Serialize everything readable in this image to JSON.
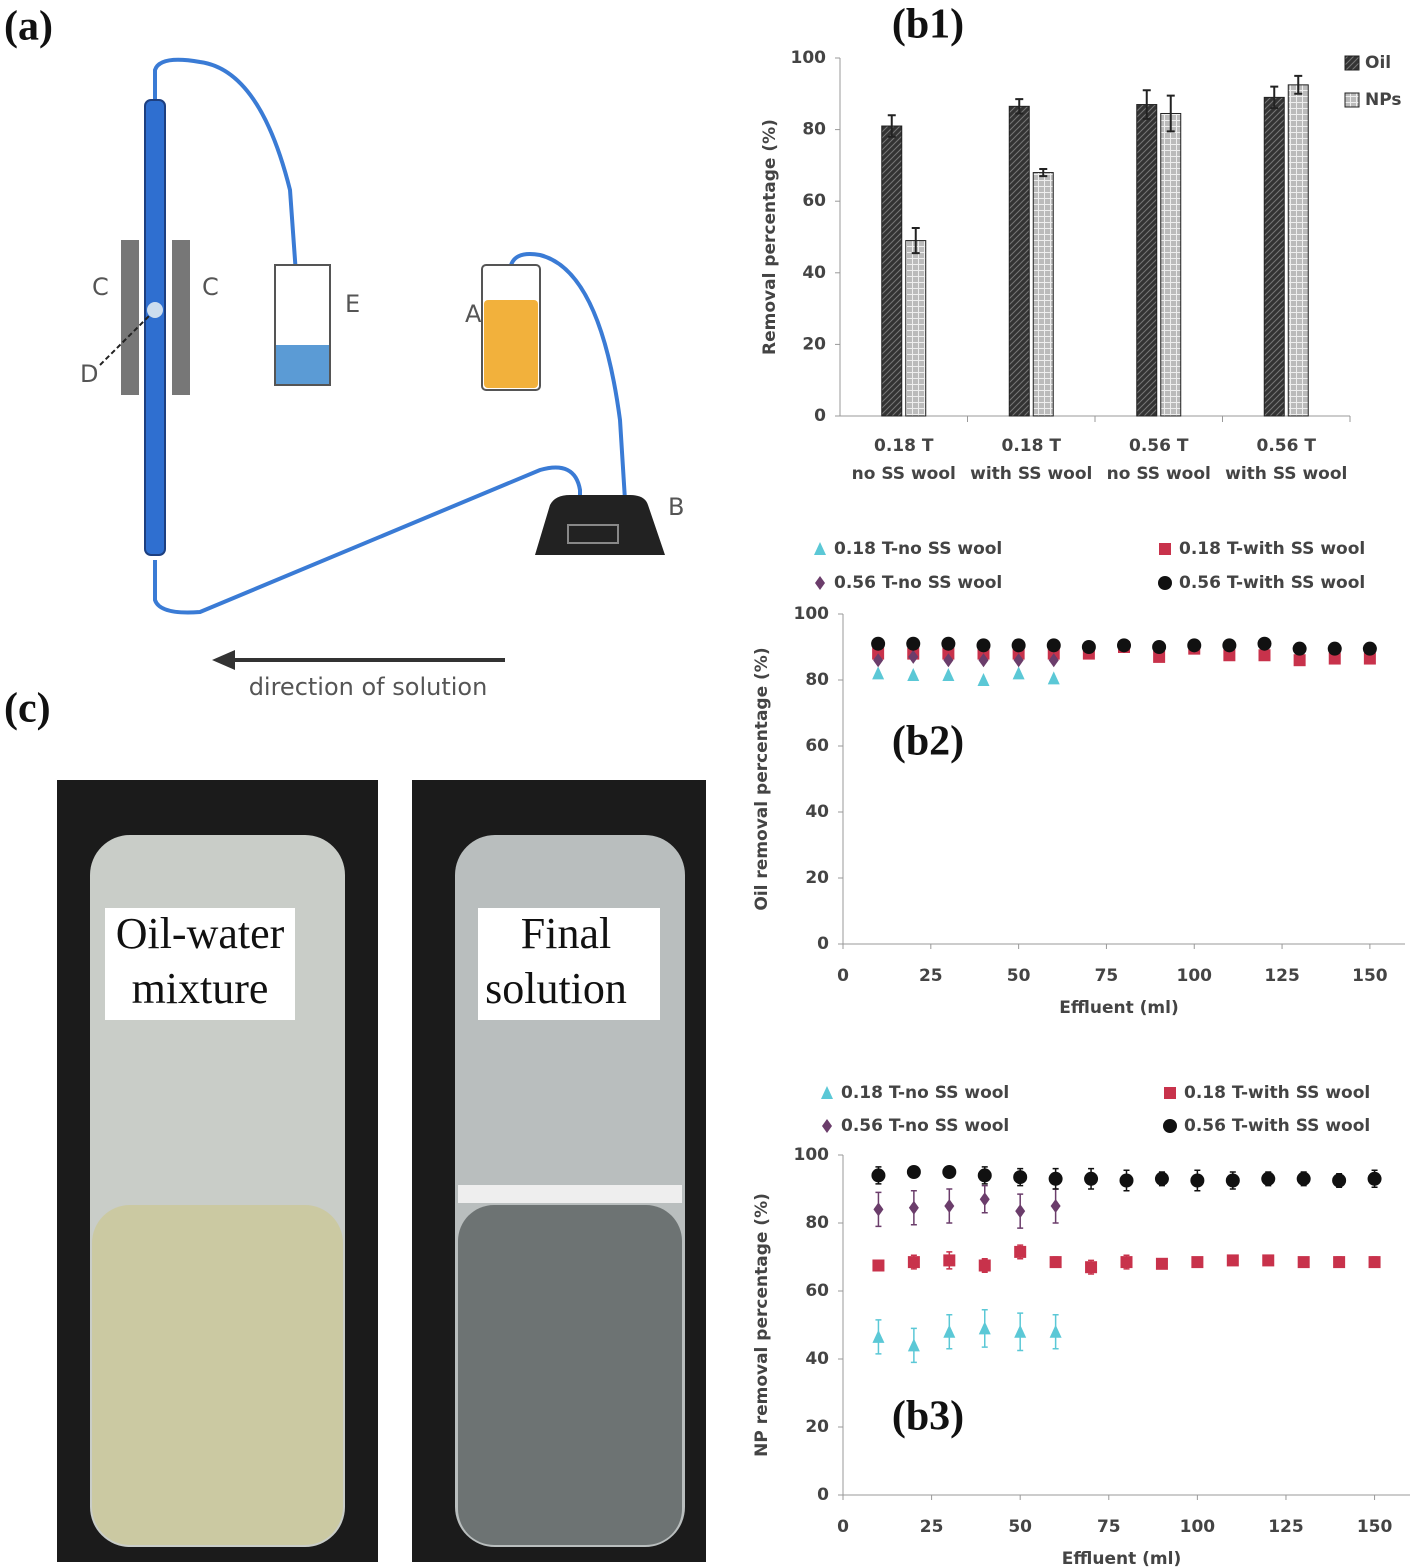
{
  "panel_a": {
    "label": "(a)",
    "parts": [
      "A",
      "B",
      "C",
      "C",
      "D",
      "E"
    ],
    "flow_label": "direction of solution"
  },
  "panel_c": {
    "label": "(c)",
    "photos": [
      {
        "lines": [
          "Oil-water",
          "mixture"
        ]
      },
      {
        "lines": [
          "Final",
          "solution"
        ]
      }
    ]
  },
  "chart_data": [
    {
      "type": "bar",
      "annotation": "(b1)",
      "y_label": "Removal percentage (%)",
      "categories": [
        [
          "0.18 T",
          "no SS wool"
        ],
        [
          "0.18 T",
          "with SS wool"
        ],
        [
          "0.56 T",
          "no SS wool"
        ],
        [
          "0.56 T",
          "with SS wool"
        ]
      ],
      "series": [
        {
          "name": "Oil",
          "color": "#333333",
          "pattern": "hatch",
          "values": [
            81,
            86.5,
            87,
            89
          ],
          "errors": [
            3,
            2,
            4,
            3
          ]
        },
        {
          "name": "NPs",
          "color": "#bbbbbb",
          "pattern": "check",
          "values": [
            49,
            68,
            84.5,
            92.5
          ],
          "errors": [
            3.5,
            1,
            5,
            2.5
          ]
        }
      ],
      "ylim": [
        0,
        100
      ],
      "yticks": [
        0,
        20,
        40,
        60,
        80,
        100
      ],
      "legend": "top-right"
    },
    {
      "type": "scatter",
      "annotation": "(b2)",
      "x_label": "Effluent (ml)",
      "y_label": "Oil removal percentage (%)",
      "x": [
        10,
        20,
        30,
        40,
        50,
        60,
        70,
        80,
        90,
        100,
        110,
        120,
        130,
        140,
        150
      ],
      "series": [
        {
          "name": "0.18 T-no SS wool",
          "color": "#5bc8d6",
          "marker": "triangle",
          "values": [
            82,
            81.5,
            81.5,
            80,
            82,
            80.5,
            null,
            null,
            null,
            null,
            null,
            null,
            null,
            null,
            null
          ]
        },
        {
          "name": "0.18 T-with SS wool",
          "color": "#c8324b",
          "marker": "square",
          "values": [
            88,
            88,
            88,
            88,
            88,
            88,
            88,
            90,
            87,
            89.5,
            87.5,
            87.5,
            86,
            86.5,
            86.5
          ]
        },
        {
          "name": "0.56 T-no SS wool",
          "color": "#6b3d6b",
          "marker": "diamond",
          "values": [
            86,
            87,
            86,
            86,
            86,
            86,
            null,
            null,
            null,
            null,
            null,
            null,
            null,
            null,
            null
          ]
        },
        {
          "name": "0.56 T-with SS wool",
          "color": "#111111",
          "marker": "circle",
          "values": [
            91,
            91,
            91,
            90.5,
            90.5,
            90.5,
            90,
            90.5,
            90,
            90.5,
            90.5,
            91,
            89.5,
            89.5,
            89.5
          ]
        }
      ],
      "xlim": [
        0,
        160
      ],
      "xticks": [
        0,
        25,
        50,
        75,
        100,
        125,
        150
      ],
      "ylim": [
        0,
        100
      ],
      "yticks": [
        0,
        20,
        40,
        60,
        80,
        100
      ]
    },
    {
      "type": "scatter",
      "annotation": "(b3)",
      "x_label": "Effluent (ml)",
      "y_label": "NP removal percentage (%)",
      "x": [
        10,
        20,
        30,
        40,
        50,
        60,
        70,
        80,
        90,
        100,
        110,
        120,
        130,
        140,
        150
      ],
      "series": [
        {
          "name": "0.18 T-no SS wool",
          "color": "#5bc8d6",
          "marker": "triangle",
          "values": [
            46.5,
            44,
            48,
            49,
            48,
            48,
            null,
            null,
            null,
            null,
            null,
            null,
            null,
            null,
            null
          ],
          "errors": [
            5,
            5,
            5,
            5.5,
            5.5,
            5,
            null,
            null,
            null,
            null,
            null,
            null,
            null,
            null,
            null
          ]
        },
        {
          "name": "0.18 T-with SS wool",
          "color": "#c8324b",
          "marker": "square",
          "values": [
            67.5,
            68.5,
            69,
            67.5,
            71.5,
            68.5,
            67,
            68.5,
            68,
            68.5,
            69,
            69,
            68.5,
            68.5,
            68.5
          ],
          "errors": [
            1,
            2,
            2.5,
            2,
            2,
            1.5,
            2,
            2,
            1,
            1,
            1,
            1,
            1,
            1.5,
            1.5
          ]
        },
        {
          "name": "0.56 T-no SS wool",
          "color": "#6b3d6b",
          "marker": "diamond",
          "values": [
            84,
            84.5,
            85,
            87,
            83.5,
            85,
            null,
            null,
            null,
            null,
            null,
            null,
            null,
            null,
            null
          ],
          "errors": [
            5,
            5,
            5,
            4,
            5,
            5,
            null,
            null,
            null,
            null,
            null,
            null,
            null,
            null,
            null
          ]
        },
        {
          "name": "0.56 T-with SS wool",
          "color": "#111111",
          "marker": "circle",
          "values": [
            94,
            95,
            95,
            94,
            93.5,
            93,
            93,
            92.5,
            93,
            92.5,
            92.5,
            93,
            93,
            92.5,
            93
          ],
          "errors": [
            2.5,
            1,
            1.5,
            2.5,
            2.5,
            3,
            3,
            3,
            2,
            3,
            2.5,
            2,
            2,
            2,
            2.5
          ]
        }
      ],
      "xlim": [
        0,
        160
      ],
      "xticks": [
        0,
        25,
        50,
        75,
        100,
        125,
        150
      ],
      "ylim": [
        0,
        100
      ],
      "yticks": [
        0,
        20,
        40,
        60,
        80,
        100
      ]
    }
  ]
}
